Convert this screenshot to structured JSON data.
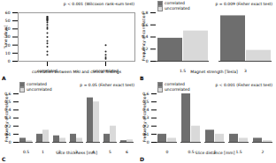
{
  "chart_data": [
    {
      "type": "scatter",
      "title": "A",
      "x_label": "correlation between MRI and clinical findings",
      "y_label": "Time [days]",
      "categories": [
        "correlated",
        "uncorrelated"
      ],
      "values": [
        [
          55,
          55,
          54,
          53,
          52,
          52,
          51,
          50,
          48,
          45,
          42,
          40,
          35,
          30,
          25,
          22,
          18,
          12,
          8
        ],
        [
          20,
          12,
          8,
          5,
          3
        ]
      ],
      "color": "#222222",
      "marker": "circle",
      "ylim": [
        0,
        60
      ],
      "yticks": [
        0,
        10,
        20,
        30,
        40,
        50,
        60
      ],
      "annotation": "p < 0.001 (Wilcoxon rank-sum test)"
    },
    {
      "type": "bar",
      "title": "B",
      "x_label": "Magnet strength [Tesla]",
      "y_label": "Frequency of correlation",
      "categories": [
        "1.5",
        "3"
      ],
      "series": [
        {
          "name": "correlated",
          "color": "#6e6e6e",
          "values": [
            0.38,
            0.75
          ]
        },
        {
          "name": "uncorrelated",
          "color": "#d9d9d9",
          "values": [
            0.5,
            0.18
          ]
        }
      ],
      "ylim": [
        0,
        0.8
      ],
      "yticks": [
        0,
        0.2,
        0.4,
        0.6,
        0.8
      ],
      "legend": "top-left",
      "annotation": "p = 0.009 (Fisher exact test)"
    },
    {
      "type": "bar",
      "title": "C",
      "x_label": "Slice thickness [mm]",
      "y_label": "Frequency of correlation",
      "categories": [
        "0.5",
        "1",
        "2",
        "3",
        "4",
        "5",
        "6"
      ],
      "series": [
        {
          "name": "correlated",
          "color": "#6e6e6e",
          "values": [
            0.05,
            0.1,
            0.08,
            0.1,
            0.55,
            0.1,
            0.02
          ]
        },
        {
          "name": "uncorrelated",
          "color": "#d9d9d9",
          "values": [
            0.02,
            0.15,
            0.05,
            0.05,
            0.5,
            0.2,
            0.03
          ]
        }
      ],
      "ylim": [
        0,
        0.6
      ],
      "yticks": [
        0,
        0.1,
        0.2,
        0.3,
        0.4,
        0.5,
        0.6
      ],
      "legend": "top-left",
      "annotation": "p = 0.05 (Fisher exact test)"
    },
    {
      "type": "bar",
      "title": "D",
      "x_label": "Slice distance [mm]",
      "y_label": "Frequency of correlation",
      "categories": [
        "0",
        "0.5",
        "1",
        "1.5",
        "2"
      ],
      "series": [
        {
          "name": "correlated",
          "color": "#6e6e6e",
          "values": [
            0.1,
            0.6,
            0.15,
            0.1,
            0.05
          ]
        },
        {
          "name": "uncorrelated",
          "color": "#d9d9d9",
          "values": [
            0.05,
            0.2,
            0.1,
            0.05,
            0.02
          ]
        }
      ],
      "ylim": [
        0,
        0.6
      ],
      "yticks": [
        0,
        0.1,
        0.2,
        0.3,
        0.4,
        0.5,
        0.6
      ],
      "legend": "top-left",
      "annotation": "p < 0.001 (Fisher exact test)"
    }
  ]
}
